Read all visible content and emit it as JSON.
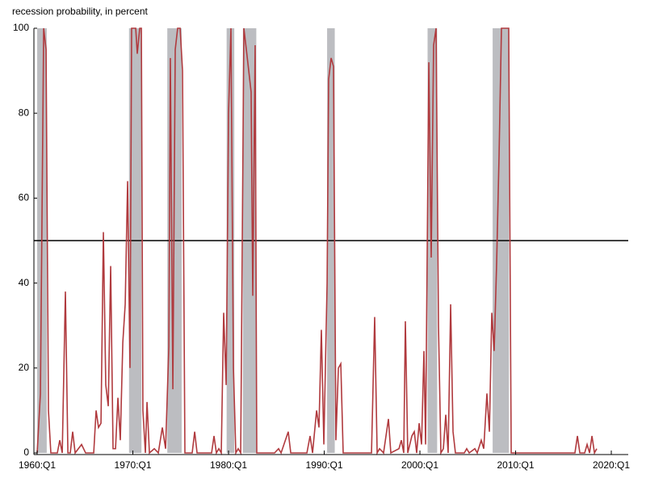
{
  "chart_data": {
    "type": "line",
    "y_label": "recession probability, in percent",
    "xlim": [
      1959.66,
      2021.77
    ],
    "ylim": [
      0,
      100
    ],
    "xticks": [
      {
        "value": 1960,
        "label": "1960:Q1"
      },
      {
        "value": 1970,
        "label": "1970:Q1"
      },
      {
        "value": 1980,
        "label": "1980:Q1"
      },
      {
        "value": 1990,
        "label": "1990:Q1"
      },
      {
        "value": 2000,
        "label": "2000:Q1"
      },
      {
        "value": 2010,
        "label": "2010:Q1"
      },
      {
        "value": 2020,
        "label": "2020:Q1"
      }
    ],
    "yticks": [
      0,
      20,
      40,
      60,
      80,
      100
    ],
    "reference_line": 50,
    "recession_color": "#bcbdc1",
    "recessions": [
      [
        1960.0,
        1961.0
      ],
      [
        1969.6,
        1970.9
      ],
      [
        1973.6,
        1975.1
      ],
      [
        1979.8,
        1980.6
      ],
      [
        1981.5,
        1982.9
      ],
      [
        1990.3,
        1991.1
      ],
      [
        2000.8,
        2001.8
      ],
      [
        2007.6,
        2009.3
      ]
    ],
    "series": [
      {
        "name": "recession probability",
        "color": "#b03a3e",
        "x": [
          1960.0,
          1960.34,
          1960.68,
          1960.93,
          1961.18,
          1961.43,
          1962.11,
          1962.36,
          1962.62,
          1962.95,
          1963.21,
          1963.46,
          1963.71,
          1963.97,
          1964.64,
          1965.06,
          1965.91,
          1966.16,
          1966.41,
          1966.67,
          1966.92,
          1967.17,
          1967.43,
          1967.68,
          1967.93,
          1968.19,
          1968.44,
          1968.69,
          1968.95,
          1969.2,
          1969.45,
          1969.7,
          1969.87,
          1970.3,
          1970.46,
          1970.72,
          1970.89,
          1971.05,
          1971.31,
          1971.48,
          1971.73,
          1972.24,
          1972.66,
          1973.08,
          1973.42,
          1973.76,
          1973.92,
          1974.18,
          1974.43,
          1974.68,
          1974.94,
          1975.19,
          1975.44,
          1976.2,
          1976.46,
          1976.71,
          1978.23,
          1978.48,
          1978.73,
          1978.99,
          1979.24,
          1979.49,
          1979.75,
          1980.0,
          1980.25,
          1980.51,
          1980.76,
          1981.01,
          1981.27,
          1981.6,
          1981.86,
          1982.11,
          1982.36,
          1982.53,
          1982.78,
          1982.95,
          1984.81,
          1985.23,
          1985.49,
          1986.24,
          1986.5,
          1988.19,
          1988.52,
          1988.78,
          1989.2,
          1989.45,
          1989.7,
          1989.96,
          1990.3,
          1990.46,
          1990.72,
          1990.97,
          1991.22,
          1991.48,
          1991.73,
          1991.98,
          1992.41,
          1994.94,
          1995.27,
          1995.53,
          1995.78,
          1996.2,
          1996.71,
          1996.96,
          1997.81,
          1998.06,
          1998.31,
          1998.48,
          1998.73,
          1999.16,
          1999.41,
          1999.66,
          1999.92,
          2000.17,
          2000.42,
          2000.59,
          2000.93,
          2001.18,
          2001.43,
          2001.69,
          2001.94,
          2002.19,
          2002.45,
          2002.7,
          2002.95,
          2003.21,
          2003.46,
          2003.71,
          2004.64,
          2004.89,
          2005.15,
          2005.74,
          2005.99,
          2006.41,
          2006.67,
          2007.0,
          2007.26,
          2007.51,
          2007.76,
          2008.02,
          2008.27,
          2008.52,
          2009.28,
          2009.54,
          2009.79,
          2016.2,
          2016.46,
          2016.71,
          2017.22,
          2017.47,
          2017.73,
          2017.98,
          2018.24,
          2018.48
        ],
        "values": [
          0,
          14,
          100,
          95,
          10,
          0,
          0,
          3,
          0,
          38,
          0,
          0,
          5,
          0,
          2,
          0,
          0,
          10,
          6,
          7,
          52,
          16,
          11,
          44,
          1,
          1,
          13,
          3,
          26,
          35,
          64,
          20,
          100,
          100,
          94,
          100,
          100,
          10,
          0,
          12,
          0,
          1,
          0,
          6,
          1,
          25,
          93,
          15,
          95,
          100,
          100,
          90,
          0,
          0,
          5,
          0,
          0,
          4,
          0,
          1,
          0,
          33,
          16,
          80,
          100,
          20,
          0,
          1,
          0,
          100,
          95,
          90,
          85,
          37,
          96,
          0,
          0,
          1,
          0,
          5,
          0,
          0,
          4,
          0,
          10,
          6,
          29,
          2,
          40,
          88,
          93,
          91,
          3,
          20,
          21,
          0,
          0,
          0,
          32,
          0,
          1,
          0,
          8,
          0,
          1,
          3,
          0,
          31,
          0,
          4,
          5,
          0,
          7,
          2,
          24,
          2,
          92,
          46,
          96,
          100,
          30,
          0,
          1,
          9,
          0,
          35,
          5,
          0,
          0,
          1,
          0,
          1,
          0,
          3,
          1,
          14,
          5,
          33,
          24,
          45,
          70,
          100,
          100,
          0,
          0,
          0,
          4,
          0,
          0,
          2,
          0,
          4,
          0,
          1
        ]
      }
    ]
  }
}
